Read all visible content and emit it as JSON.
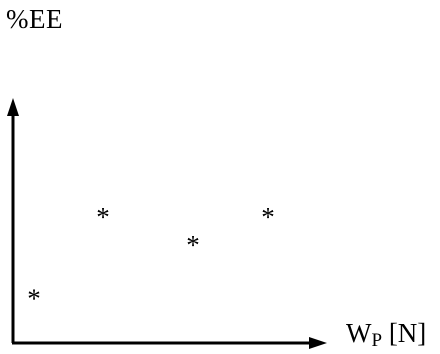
{
  "chart_data": {
    "type": "scatter",
    "ylabel": "%EE",
    "xlabel": {
      "main": "W",
      "sub": "P",
      "unit": " [N]"
    },
    "marker": "*",
    "points": [
      {
        "x": 0.07,
        "y": 0.2
      },
      {
        "x": 0.3,
        "y": 0.55
      },
      {
        "x": 0.6,
        "y": 0.43
      },
      {
        "x": 0.85,
        "y": 0.55
      }
    ],
    "xlim": [
      0,
      1
    ],
    "ylim": [
      0,
      1
    ],
    "grid": false,
    "axis_color": "#000000"
  }
}
